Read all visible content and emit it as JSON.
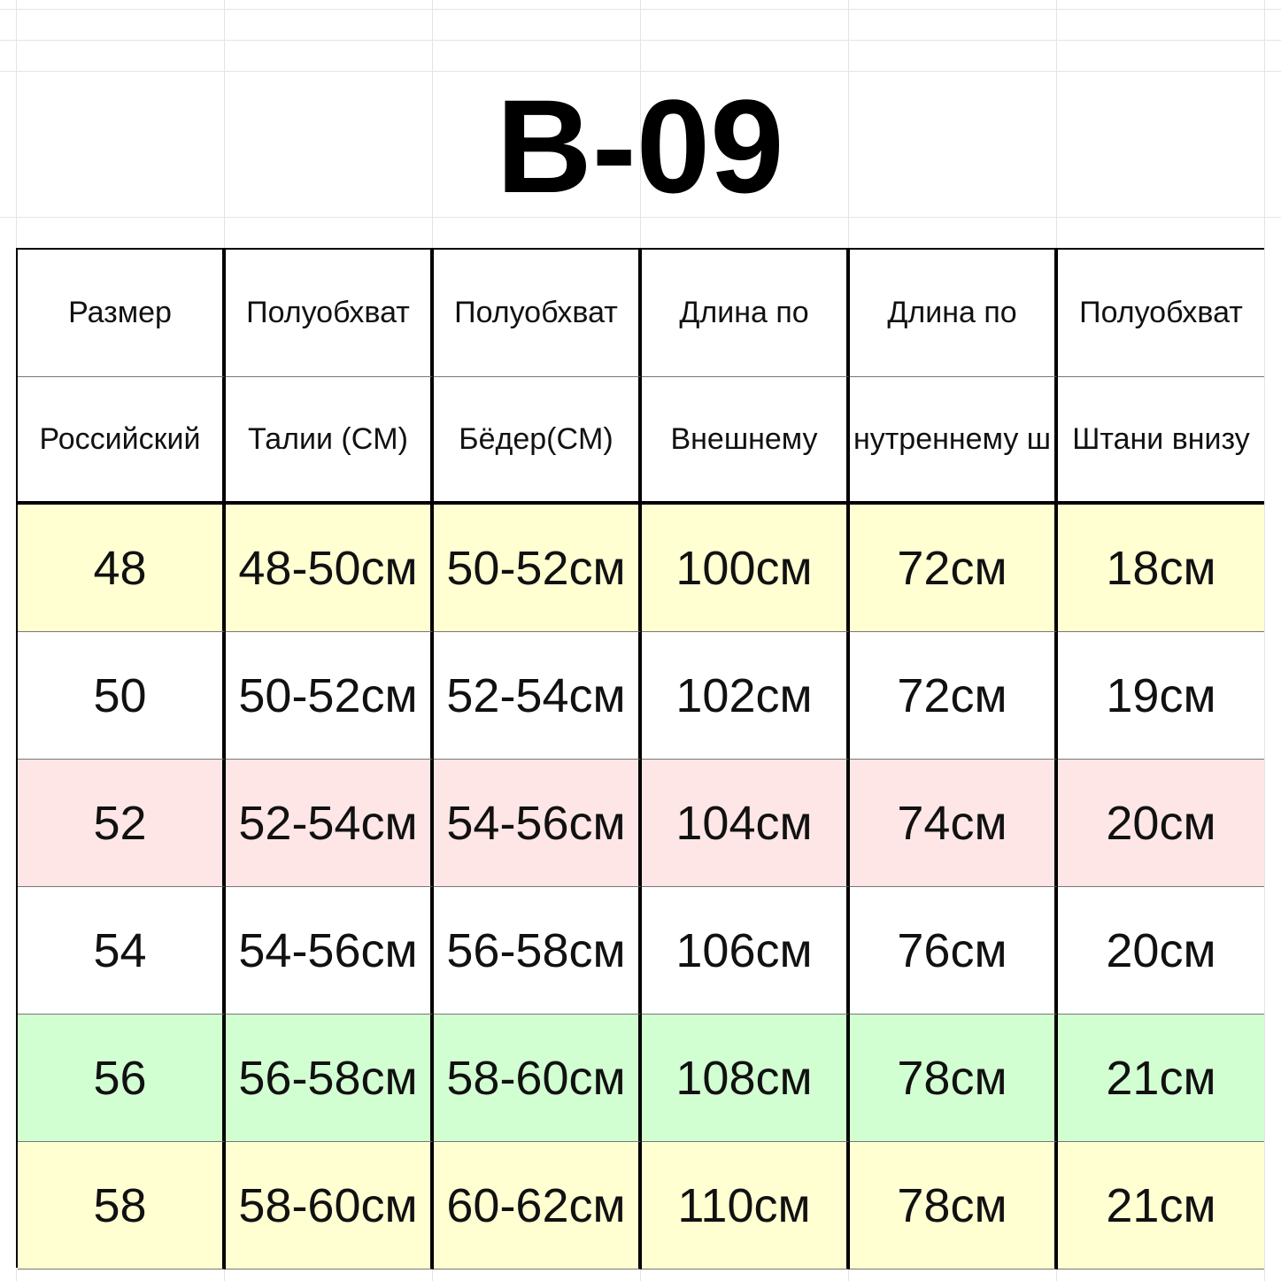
{
  "title": "B-09",
  "table": {
    "header": [
      [
        "Размер",
        "Полуобхват",
        "Полуобхват",
        "Длина по",
        "Длина по",
        "Полуобхват"
      ],
      [
        "Российский",
        "Талии (CM)",
        "Бёдер(CM)",
        "Внешнему",
        "нутреннему ш",
        "Штани внизу"
      ]
    ],
    "rows": [
      {
        "color": "#ffffd2",
        "cells": [
          "48",
          "48-50см",
          "50-52см",
          "100см",
          "72см",
          "18см"
        ]
      },
      {
        "color": "#ffffff",
        "cells": [
          "50",
          "50-52см",
          "52-54см",
          "102см",
          "72см",
          "19см"
        ]
      },
      {
        "color": "#ffe6e6",
        "cells": [
          "52",
          "52-54см",
          "54-56см",
          "104см",
          "74см",
          "20см"
        ]
      },
      {
        "color": "#ffffff",
        "cells": [
          "54",
          "54-56см",
          "56-58см",
          "106см",
          "76см",
          "20см"
        ]
      },
      {
        "color": "#d2ffd2",
        "cells": [
          "56",
          "56-58см",
          "58-60см",
          "108см",
          "78см",
          "21см"
        ]
      },
      {
        "color": "#ffffd2",
        "cells": [
          "58",
          "58-60см",
          "60-62см",
          "110см",
          "78см",
          "21см"
        ]
      }
    ]
  }
}
